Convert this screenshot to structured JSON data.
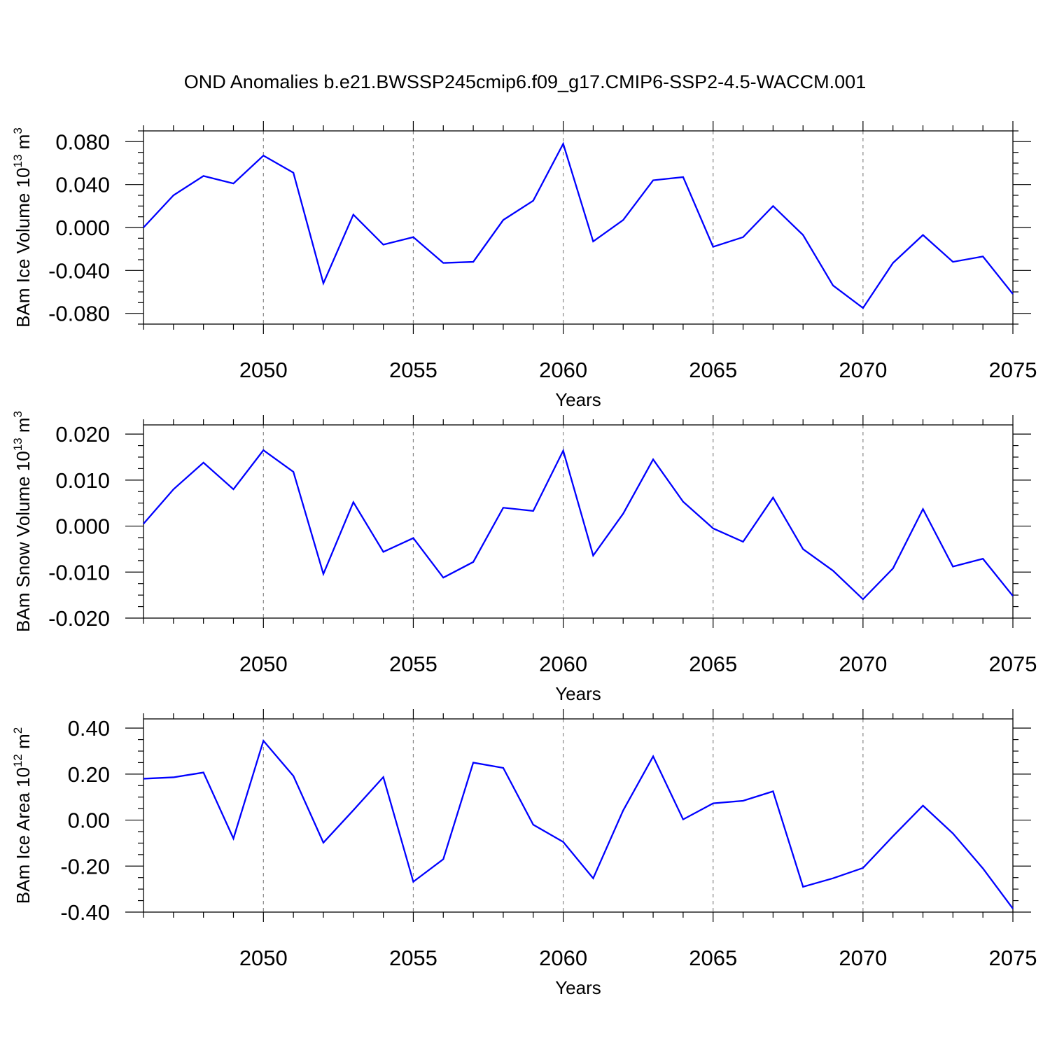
{
  "title": "OND Anomalies b.e21.BWSSP245cmip6.f09_g17.CMIP6-SSP2-4.5-WACCM.001",
  "colors": {
    "line": "#0000ff",
    "axis": "#000000",
    "grid": "#888888",
    "background": "#ffffff"
  },
  "chart_data": [
    {
      "type": "line",
      "ylabel": {
        "text": "BAm Ice Volume 10",
        "sup": "13",
        "unit": " m",
        "unit_sup": "3"
      },
      "xlabel": "Years",
      "xlim": [
        2046,
        2075
      ],
      "ylim": [
        -0.09,
        0.09
      ],
      "xticks": [
        2050,
        2055,
        2060,
        2065,
        2070,
        2075
      ],
      "xtick_labels": [
        "2050",
        "2055",
        "2060",
        "2065",
        "2070",
        "2075"
      ],
      "yticks": [
        0.08,
        0.04,
        0.0,
        -0.04,
        -0.08
      ],
      "ytick_labels": [
        "0.080",
        "0.040",
        "0.000",
        "-0.040",
        "-0.080"
      ],
      "grid": "vertical dashed at major x ticks",
      "x": [
        2046,
        2047,
        2048,
        2049,
        2050,
        2051,
        2052,
        2053,
        2054,
        2055,
        2056,
        2057,
        2058,
        2059,
        2060,
        2061,
        2062,
        2063,
        2064,
        2065,
        2066,
        2067,
        2068,
        2069,
        2070,
        2071,
        2072,
        2073,
        2074,
        2075
      ],
      "series": [
        {
          "values": [
            0.0,
            0.03,
            0.048,
            0.041,
            0.067,
            0.051,
            -0.052,
            0.012,
            -0.016,
            -0.009,
            -0.033,
            -0.032,
            0.007,
            0.025,
            0.078,
            -0.013,
            0.007,
            0.044,
            0.047,
            -0.018,
            -0.009,
            0.02,
            -0.007,
            -0.054,
            -0.075,
            -0.033,
            -0.007,
            -0.032,
            -0.027,
            -0.062
          ]
        }
      ]
    },
    {
      "type": "line",
      "ylabel": {
        "text": "BAm Snow Volume 10",
        "sup": "13",
        "unit": " m",
        "unit_sup": "3"
      },
      "xlabel": "Years",
      "xlim": [
        2046,
        2075
      ],
      "ylim": [
        -0.02,
        0.022
      ],
      "xticks": [
        2050,
        2055,
        2060,
        2065,
        2070,
        2075
      ],
      "xtick_labels": [
        "2050",
        "2055",
        "2060",
        "2065",
        "2070",
        "2075"
      ],
      "yticks": [
        0.02,
        0.01,
        0.0,
        -0.01,
        -0.02
      ],
      "ytick_labels": [
        "0.020",
        "0.010",
        "0.000",
        "-0.010",
        "-0.020"
      ],
      "grid": "vertical dashed at major x ticks",
      "x": [
        2046,
        2047,
        2048,
        2049,
        2050,
        2051,
        2052,
        2053,
        2054,
        2055,
        2056,
        2057,
        2058,
        2059,
        2060,
        2061,
        2062,
        2063,
        2064,
        2065,
        2066,
        2067,
        2068,
        2069,
        2070,
        2071,
        2072,
        2073,
        2074,
        2075
      ],
      "series": [
        {
          "values": [
            0.0005,
            0.008,
            0.0138,
            0.008,
            0.0165,
            0.0118,
            -0.0104,
            0.0052,
            -0.0056,
            -0.0026,
            -0.0112,
            -0.0078,
            0.004,
            0.0033,
            0.0164,
            -0.0064,
            0.0027,
            0.0145,
            0.0053,
            -0.0005,
            -0.0034,
            0.0062,
            -0.005,
            -0.0097,
            -0.0159,
            -0.0092,
            0.0037,
            -0.0088,
            -0.0071,
            -0.0152
          ]
        }
      ]
    },
    {
      "type": "line",
      "ylabel": {
        "text": "BAm Ice Area 10",
        "sup": "12",
        "unit": " m",
        "unit_sup": "2"
      },
      "xlabel": "Years",
      "xlim": [
        2046,
        2075
      ],
      "ylim": [
        -0.4,
        0.44
      ],
      "xticks": [
        2050,
        2055,
        2060,
        2065,
        2070,
        2075
      ],
      "xtick_labels": [
        "2050",
        "2055",
        "2060",
        "2065",
        "2070",
        "2075"
      ],
      "yticks": [
        0.4,
        0.2,
        0.0,
        -0.2,
        -0.4
      ],
      "ytick_labels": [
        "0.40",
        "0.20",
        "0.00",
        "-0.20",
        "-0.40"
      ],
      "grid": "vertical dashed at major x ticks",
      "x": [
        2046,
        2047,
        2048,
        2049,
        2050,
        2051,
        2052,
        2053,
        2054,
        2055,
        2056,
        2057,
        2058,
        2059,
        2060,
        2061,
        2062,
        2063,
        2064,
        2065,
        2066,
        2067,
        2068,
        2069,
        2070,
        2071,
        2072,
        2073,
        2074,
        2075
      ],
      "series": [
        {
          "values": [
            0.18,
            0.186,
            0.207,
            -0.08,
            0.345,
            0.192,
            -0.098,
            0.043,
            0.187,
            -0.268,
            -0.17,
            0.25,
            0.227,
            -0.02,
            -0.095,
            -0.253,
            0.042,
            0.277,
            0.003,
            0.073,
            0.084,
            0.125,
            -0.29,
            -0.253,
            -0.208,
            -0.07,
            0.063,
            -0.058,
            -0.21,
            -0.385
          ]
        }
      ]
    }
  ]
}
